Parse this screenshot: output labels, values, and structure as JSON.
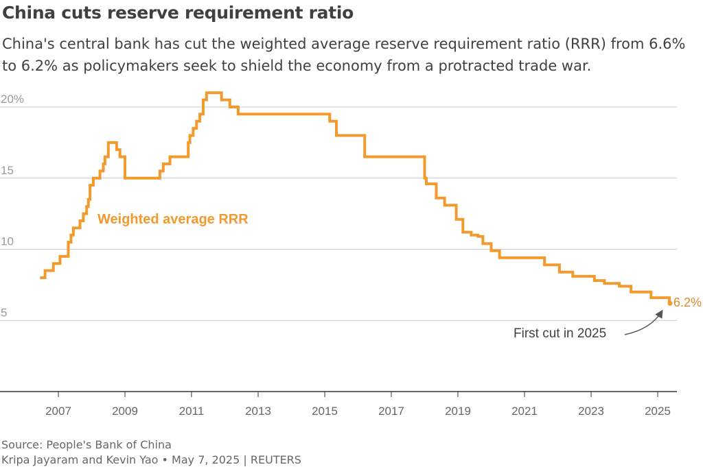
{
  "title": "China cuts reserve requirement ratio",
  "subtitle": "China's central bank has cut the weighted average reserve requirement ratio (RRR) from 6.6% to 6.2% as policymakers seek to shield the economy from a protracted trade war.",
  "source": "Source: People's Bank of China",
  "credit": "Kripa Jayaram and Kevin Yao • May 7, 2025 | REUTERS",
  "colors": {
    "series": "#f39a2e",
    "grid": "#cccccc",
    "axis": "#333333",
    "tick_label": "#666666",
    "y_tick_label": "#999999"
  },
  "chart_data": {
    "type": "line",
    "step": true,
    "series": [
      {
        "name": "Weighted average RRR",
        "points": [
          [
            2006.45,
            8.0
          ],
          [
            2006.6,
            8.5
          ],
          [
            2006.85,
            9.0
          ],
          [
            2007.05,
            9.5
          ],
          [
            2007.3,
            10.5
          ],
          [
            2007.38,
            11.0
          ],
          [
            2007.45,
            11.5
          ],
          [
            2007.65,
            12.0
          ],
          [
            2007.75,
            12.5
          ],
          [
            2007.85,
            13.0
          ],
          [
            2007.9,
            13.5
          ],
          [
            2007.95,
            14.5
          ],
          [
            2008.05,
            15.0
          ],
          [
            2008.25,
            15.5
          ],
          [
            2008.35,
            16.0
          ],
          [
            2008.4,
            16.5
          ],
          [
            2008.5,
            17.5
          ],
          [
            2008.75,
            17.0
          ],
          [
            2008.85,
            16.5
          ],
          [
            2009.0,
            15.0
          ],
          [
            2010.05,
            15.5
          ],
          [
            2010.15,
            16.0
          ],
          [
            2010.35,
            16.5
          ],
          [
            2010.9,
            17.5
          ],
          [
            2010.95,
            18.0
          ],
          [
            2011.05,
            18.5
          ],
          [
            2011.15,
            19.0
          ],
          [
            2011.25,
            19.5
          ],
          [
            2011.35,
            20.5
          ],
          [
            2011.45,
            21.0
          ],
          [
            2011.9,
            20.5
          ],
          [
            2012.15,
            20.0
          ],
          [
            2012.4,
            19.5
          ],
          [
            2015.15,
            19.0
          ],
          [
            2015.35,
            18.0
          ],
          [
            2016.2,
            16.5
          ],
          [
            2018.0,
            15.0
          ],
          [
            2018.05,
            14.6
          ],
          [
            2018.35,
            13.6
          ],
          [
            2018.6,
            13.1
          ],
          [
            2018.95,
            12.1
          ],
          [
            2019.15,
            11.2
          ],
          [
            2019.4,
            11.0
          ],
          [
            2019.6,
            10.9
          ],
          [
            2019.75,
            10.4
          ],
          [
            2020.0,
            9.9
          ],
          [
            2020.25,
            9.4
          ],
          [
            2021.6,
            8.9
          ],
          [
            2022.05,
            8.4
          ],
          [
            2022.45,
            8.1
          ],
          [
            2023.1,
            7.8
          ],
          [
            2023.4,
            7.6
          ],
          [
            2023.85,
            7.4
          ],
          [
            2024.2,
            7.0
          ],
          [
            2024.8,
            6.6
          ],
          [
            2025.35,
            6.2
          ]
        ]
      }
    ],
    "ylim": [
      0,
      21
    ],
    "xlim": [
      2006,
      2025.6
    ],
    "yticks": [
      5,
      10,
      15,
      20
    ],
    "ytick_labels": [
      "5",
      "10",
      "15",
      "20%"
    ],
    "xticks": [
      2007,
      2009,
      2011,
      2013,
      2015,
      2017,
      2019,
      2021,
      2023,
      2025
    ],
    "xtick_labels": [
      "2007",
      "2009",
      "2011",
      "2013",
      "2015",
      "2017",
      "2019",
      "2021",
      "2023",
      "2025"
    ],
    "grid": "horizontal",
    "series_label": "Weighted average RRR",
    "end_value_label": "6.2%",
    "annotation": "First cut in 2025"
  }
}
